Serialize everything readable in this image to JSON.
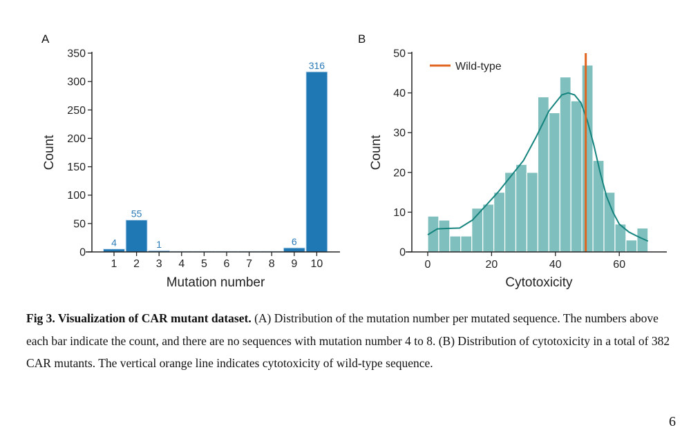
{
  "chart_data": [
    {
      "panel": "A",
      "type": "bar",
      "categories": [
        "1",
        "2",
        "3",
        "4",
        "5",
        "6",
        "7",
        "8",
        "9",
        "10"
      ],
      "values": [
        4,
        55,
        1,
        0,
        0,
        0,
        0,
        0,
        6,
        316
      ],
      "data_labels": [
        "4",
        "55",
        "1",
        "",
        "",
        "",
        "",
        "",
        "6",
        "316"
      ],
      "xlabel": "Mutation number",
      "ylabel": "Count",
      "ylim": [
        0,
        350
      ],
      "yticks": [
        0,
        50,
        100,
        150,
        200,
        250,
        300,
        350
      ],
      "bar_color": "#1f77b4",
      "label_color": "#2a7ab8"
    },
    {
      "panel": "B",
      "type": "bar",
      "subtype": "histogram",
      "bin_edges": [
        0,
        3.45,
        6.9,
        10.35,
        13.8,
        17.25,
        20.7,
        24.15,
        27.6,
        31.05,
        34.5,
        37.95,
        41.4,
        44.85,
        48.3,
        51.75,
        55.2,
        58.65,
        62.1,
        65.55,
        69
      ],
      "values": [
        9,
        8,
        4,
        4,
        11,
        12,
        15,
        20,
        22,
        20,
        39,
        35,
        44,
        38,
        47,
        23,
        15,
        7,
        3,
        6
      ],
      "kde": {
        "x": [
          0,
          3,
          6,
          10,
          14,
          18,
          22,
          26,
          30,
          34,
          38,
          42,
          44,
          46,
          48,
          50,
          52,
          54,
          56,
          58,
          60,
          63,
          66,
          69
        ],
        "y": [
          4.3,
          5.8,
          5.9,
          6.0,
          8,
          11.5,
          15,
          19,
          23,
          29,
          35.5,
          39.5,
          40,
          39.5,
          37.5,
          33,
          27,
          20,
          14,
          10,
          7,
          5,
          3.8,
          2.7
        ]
      },
      "wild_type_x": 49.5,
      "legend": [
        "Wild-type"
      ],
      "legend_position": "top-left",
      "xlabel": "Cytotoxicity",
      "ylabel": "Count",
      "xlim": [
        -5,
        75
      ],
      "ylim": [
        0,
        50
      ],
      "xticks": [
        0,
        20,
        40,
        60
      ],
      "yticks": [
        0,
        10,
        20,
        30,
        40,
        50
      ],
      "bar_color": "#7fbfbd",
      "kde_color": "#16847e",
      "wild_type_color": "#e0641e"
    }
  ],
  "panel_labels": {
    "a": "A",
    "b": "B"
  },
  "caption": {
    "bold": "Fig 3. Visualization of CAR mutant dataset.",
    "text": " (A) Distribution of the mutation number per mutated sequence. The numbers above each bar indicate the count, and there are no sequences with mutation number 4 to 8. (B) Distribution of cytotoxicity in a total of 382 CAR mutants. The vertical orange line indicates cytotoxicity of wild-type sequence."
  },
  "page_number": "6"
}
